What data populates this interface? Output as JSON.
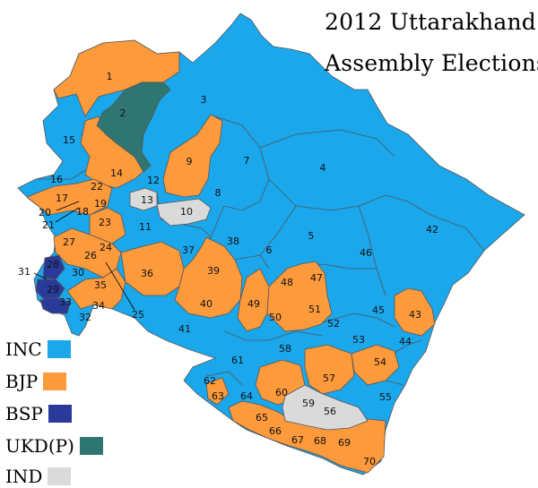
{
  "title_line1": "2012 Uttarakhand",
  "title_line2": "Assembly Elections",
  "colors": {
    "INC": "#1aa7ec",
    "BJP": "#fd9a3c",
    "BSP": "#2a3a9b",
    "UKD(P)": "#2f7672",
    "IND": "#dadada",
    "border": "#555555"
  },
  "legend": [
    {
      "party": "INC",
      "label": "INC"
    },
    {
      "party": "BJP",
      "label": "BJP"
    },
    {
      "party": "BSP",
      "label": "BSP"
    },
    {
      "party": "UKD(P)",
      "label": "UKD(P)"
    },
    {
      "party": "IND",
      "label": "IND"
    }
  ],
  "constituencies": [
    {
      "no": "1",
      "party": "BJP"
    },
    {
      "no": "2",
      "party": "UKD(P)"
    },
    {
      "no": "3",
      "party": "INC"
    },
    {
      "no": "4",
      "party": "INC"
    },
    {
      "no": "5",
      "party": "INC"
    },
    {
      "no": "6",
      "party": "INC"
    },
    {
      "no": "7",
      "party": "INC"
    },
    {
      "no": "8",
      "party": "INC"
    },
    {
      "no": "9",
      "party": "BJP"
    },
    {
      "no": "10",
      "party": "IND"
    },
    {
      "no": "11",
      "party": "INC"
    },
    {
      "no": "12",
      "party": "INC"
    },
    {
      "no": "13",
      "party": "IND"
    },
    {
      "no": "14",
      "party": "BJP"
    },
    {
      "no": "15",
      "party": "INC"
    },
    {
      "no": "16",
      "party": "INC"
    },
    {
      "no": "17",
      "party": "BJP"
    },
    {
      "no": "18",
      "party": "INC"
    },
    {
      "no": "19",
      "party": "INC"
    },
    {
      "no": "20",
      "party": "BJP"
    },
    {
      "no": "21",
      "party": "BJP"
    },
    {
      "no": "22",
      "party": "BJP"
    },
    {
      "no": "23",
      "party": "BJP"
    },
    {
      "no": "24",
      "party": "BJP"
    },
    {
      "no": "25",
      "party": "BJP"
    },
    {
      "no": "26",
      "party": "BJP"
    },
    {
      "no": "27",
      "party": "BJP"
    },
    {
      "no": "28",
      "party": "BSP"
    },
    {
      "no": "29",
      "party": "BSP"
    },
    {
      "no": "30",
      "party": "INC"
    },
    {
      "no": "31",
      "party": "BSP"
    },
    {
      "no": "32",
      "party": "INC"
    },
    {
      "no": "33",
      "party": "BSP"
    },
    {
      "no": "34",
      "party": "BJP"
    },
    {
      "no": "35",
      "party": "BJP"
    },
    {
      "no": "36",
      "party": "BJP"
    },
    {
      "no": "37",
      "party": "INC"
    },
    {
      "no": "38",
      "party": "INC"
    },
    {
      "no": "39",
      "party": "BJP"
    },
    {
      "no": "40",
      "party": "BJP"
    },
    {
      "no": "41",
      "party": "INC"
    },
    {
      "no": "42",
      "party": "INC"
    },
    {
      "no": "43",
      "party": "BJP"
    },
    {
      "no": "44",
      "party": "INC"
    },
    {
      "no": "45",
      "party": "INC"
    },
    {
      "no": "46",
      "party": "INC"
    },
    {
      "no": "47",
      "party": "BJP"
    },
    {
      "no": "48",
      "party": "INC"
    },
    {
      "no": "49",
      "party": "BJP"
    },
    {
      "no": "50",
      "party": "BJP"
    },
    {
      "no": "51",
      "party": "BJP"
    },
    {
      "no": "52",
      "party": "INC"
    },
    {
      "no": "53",
      "party": "INC"
    },
    {
      "no": "54",
      "party": "BJP"
    },
    {
      "no": "55",
      "party": "INC"
    },
    {
      "no": "56",
      "party": "IND"
    },
    {
      "no": "57",
      "party": "BJP"
    },
    {
      "no": "58",
      "party": "INC"
    },
    {
      "no": "59",
      "party": "IND"
    },
    {
      "no": "60",
      "party": "BJP"
    },
    {
      "no": "61",
      "party": "INC"
    },
    {
      "no": "62",
      "party": "INC"
    },
    {
      "no": "63",
      "party": "BJP"
    },
    {
      "no": "64",
      "party": "INC"
    },
    {
      "no": "65",
      "party": "BJP"
    },
    {
      "no": "66",
      "party": "BJP"
    },
    {
      "no": "67",
      "party": "BJP"
    },
    {
      "no": "68",
      "party": "BJP"
    },
    {
      "no": "69",
      "party": "BJP"
    },
    {
      "no": "70",
      "party": "BJP"
    }
  ]
}
